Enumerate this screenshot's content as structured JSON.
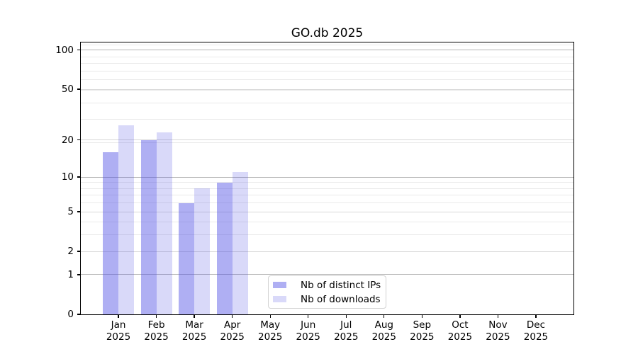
{
  "chart_data": {
    "type": "bar",
    "title": "GO.db 2025",
    "months": [
      "Jan",
      "Feb",
      "Mar",
      "Apr",
      "May",
      "Jun",
      "Jul",
      "Aug",
      "Sep",
      "Oct",
      "Nov",
      "Dec"
    ],
    "year": "2025",
    "categories": [
      "Jan 2025",
      "Feb 2025",
      "Mar 2025",
      "Apr 2025",
      "May 2025",
      "Jun 2025",
      "Jul 2025",
      "Aug 2025",
      "Sep 2025",
      "Oct 2025",
      "Nov 2025",
      "Dec 2025"
    ],
    "series": [
      {
        "name": "Nb of distinct IPs",
        "key": "distinct-ips",
        "color": "rgba(77,77,228,0.45)",
        "values": [
          16,
          20,
          6,
          9,
          0,
          0,
          0,
          0,
          0,
          0,
          0,
          0
        ]
      },
      {
        "name": "Nb of downloads",
        "key": "downloads",
        "color": "rgba(77,77,228,0.21)",
        "values": [
          26,
          23,
          8,
          11,
          0,
          0,
          0,
          0,
          0,
          0,
          0,
          0
        ]
      }
    ],
    "yscale": "log1p",
    "y_ticks": [
      0,
      1,
      2,
      5,
      10,
      20,
      50,
      100
    ],
    "ylim": [
      0,
      113
    ],
    "xlabel": "",
    "ylabel": "",
    "grid": "on",
    "legend_position": "inside lower-center-left"
  }
}
